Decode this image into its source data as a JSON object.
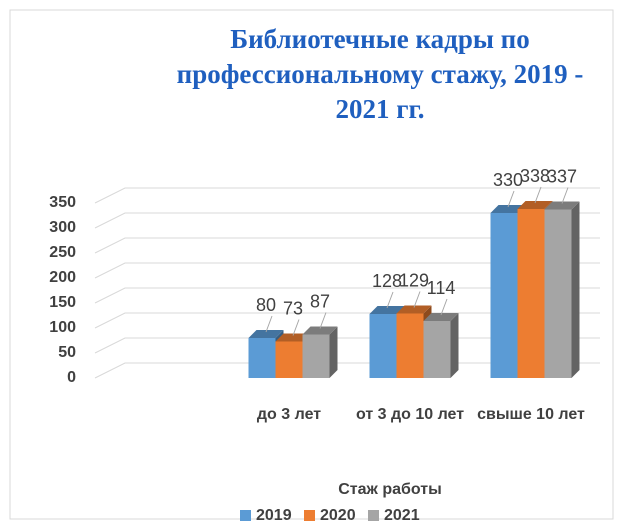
{
  "chart_data": {
    "type": "bar3d",
    "title": "Библиотечные кадры по профессиональному стажу, 2019 - 2021 гг.",
    "x_label": "Стаж работы",
    "categories": [
      "до 3 лет",
      "от 3 до 10 лет",
      "свыше 10 лет"
    ],
    "series": [
      {
        "name": "2019",
        "color": "#5b9bd5",
        "values": [
          80,
          128,
          330
        ]
      },
      {
        "name": "2020",
        "color": "#ed7d31",
        "values": [
          73,
          129,
          338
        ]
      },
      {
        "name": "2021",
        "color": "#a5a5a5",
        "values": [
          87,
          114,
          337
        ]
      }
    ],
    "ylim": [
      0,
      350
    ],
    "yticks": [
      0,
      50,
      100,
      150,
      200,
      250,
      300,
      350
    ],
    "grid": true,
    "legend": "bottom"
  }
}
